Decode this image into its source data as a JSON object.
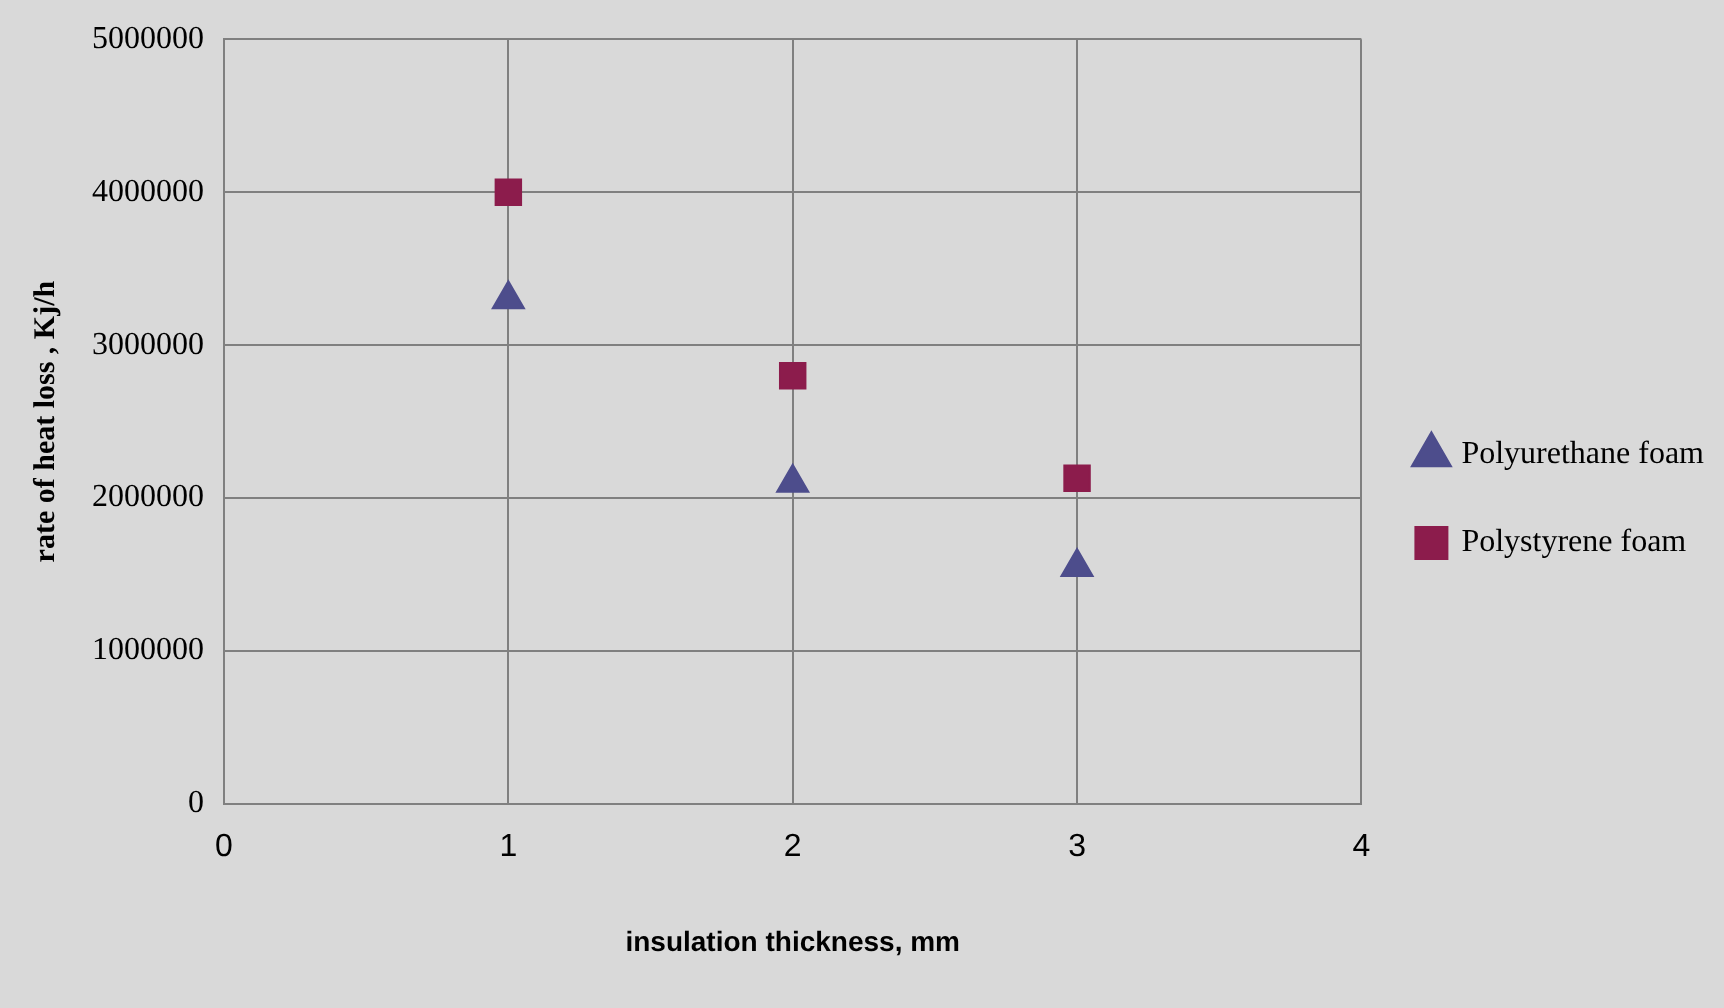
{
  "chart_data": {
    "type": "scatter",
    "xlabel": "insulation thickness, mm",
    "ylabel": "rate of heat loss , Kj/h",
    "series": [
      {
        "name": "Polyurethane foam",
        "color": "#4d4d8c",
        "marker": "triangle",
        "x": [
          1,
          2,
          3
        ],
        "values": [
          3300000,
          2100000,
          1550000
        ]
      },
      {
        "name": "Polystyrene foam",
        "color": "#8c1c4c",
        "marker": "square",
        "x": [
          1,
          2,
          3
        ],
        "values": [
          4000000,
          2800000,
          2130000
        ]
      }
    ],
    "xlim": [
      0,
      4
    ],
    "xticks": [
      0,
      1,
      2,
      3,
      4
    ],
    "ylim": [
      0,
      5000000
    ],
    "yticks": [
      0,
      1000000,
      2000000,
      3000000,
      4000000,
      5000000
    ],
    "grid": true,
    "legend": "right"
  }
}
